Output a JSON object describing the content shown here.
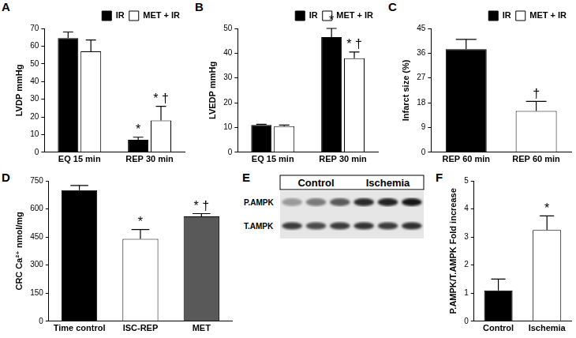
{
  "chart_data": [
    {
      "type": "bar",
      "title": "A",
      "y_label": "LVDP mmHg",
      "categories": [
        "EQ 15 min",
        "REP 30 min"
      ],
      "series": [
        {
          "name": "IR",
          "color": "#000000",
          "values": [
            64.5,
            7
          ],
          "errors": [
            3.5,
            1.5
          ],
          "annotations": [
            null,
            "*"
          ]
        },
        {
          "name": "MET + IR",
          "color": "#ffffff",
          "values": [
            57,
            18
          ],
          "errors": [
            6.5,
            8
          ],
          "annotations": [
            null,
            "* †"
          ]
        }
      ],
      "ylim": [
        0,
        70
      ],
      "yticks": [
        0,
        10,
        20,
        30,
        40,
        50,
        60,
        70
      ],
      "grid": false,
      "legend": "top right"
    },
    {
      "type": "bar",
      "title": "B",
      "y_label": "LVEDP mmHg",
      "categories": [
        "EQ 15 min",
        "REP 30 min"
      ],
      "series": [
        {
          "name": "IR",
          "color": "#000000",
          "values": [
            11,
            46.5
          ],
          "errors": [
            0.3,
            3.5
          ],
          "annotations": [
            null,
            "*"
          ]
        },
        {
          "name": "MET + IR",
          "color": "#ffffff",
          "values": [
            10.5,
            38
          ],
          "errors": [
            0.5,
            2.5
          ],
          "annotations": [
            null,
            "* †"
          ]
        }
      ],
      "ylim": [
        0,
        50
      ],
      "yticks": [
        0,
        10,
        20,
        30,
        40,
        50
      ],
      "grid": false,
      "legend": "top right"
    },
    {
      "type": "bar",
      "title": "C",
      "y_label": "Infarct size (%)",
      "categories": [
        "REP 60 min",
        "REP 60 min"
      ],
      "series": [
        {
          "name": "IR",
          "color": "#000000",
          "values": [
            37.5,
            null
          ],
          "errors": [
            3.5,
            null
          ],
          "annotations": [
            null,
            null
          ]
        },
        {
          "name": "MET + IR",
          "color": "#ffffff",
          "values": [
            null,
            15
          ],
          "errors": [
            null,
            3.5
          ],
          "annotations": [
            null,
            "†"
          ]
        }
      ],
      "ylim": [
        0,
        45
      ],
      "yticks": [
        0,
        9,
        18,
        27,
        36,
        45
      ],
      "grid": false,
      "legend": "top right"
    },
    {
      "type": "bar",
      "title": "D",
      "y_label": "CRC Ca²⁺ nmol/mg",
      "categories": [
        "Time control",
        "ISC-REP",
        "MET"
      ],
      "series": [
        {
          "colors": [
            "#000000",
            "#ffffff",
            "#595959"
          ],
          "values": [
            700,
            440,
            560
          ],
          "errors": [
            25,
            50,
            15
          ],
          "annotations": [
            null,
            "*",
            "* †"
          ]
        }
      ],
      "ylim": [
        0,
        750
      ],
      "yticks": [
        0,
        150,
        300,
        450,
        600,
        750
      ],
      "grid": false
    },
    {
      "type": "bar",
      "title": "F",
      "y_label": "P.AMPK/T.AMPK Fold increase",
      "categories": [
        "Control",
        "Ischemia"
      ],
      "series": [
        {
          "colors": [
            "#000000",
            "#ffffff"
          ],
          "values": [
            1.1,
            3.25
          ],
          "errors": [
            0.4,
            0.5
          ],
          "annotations": [
            null,
            "*"
          ]
        }
      ],
      "ylim": [
        0,
        5
      ],
      "yticks": [
        0,
        1,
        2,
        3,
        4,
        5
      ],
      "grid": false
    }
  ],
  "blot": {
    "title": "E",
    "groups": [
      "Control",
      "Ischemia"
    ],
    "rows": [
      "P.AMPK",
      "T.AMPK"
    ]
  }
}
